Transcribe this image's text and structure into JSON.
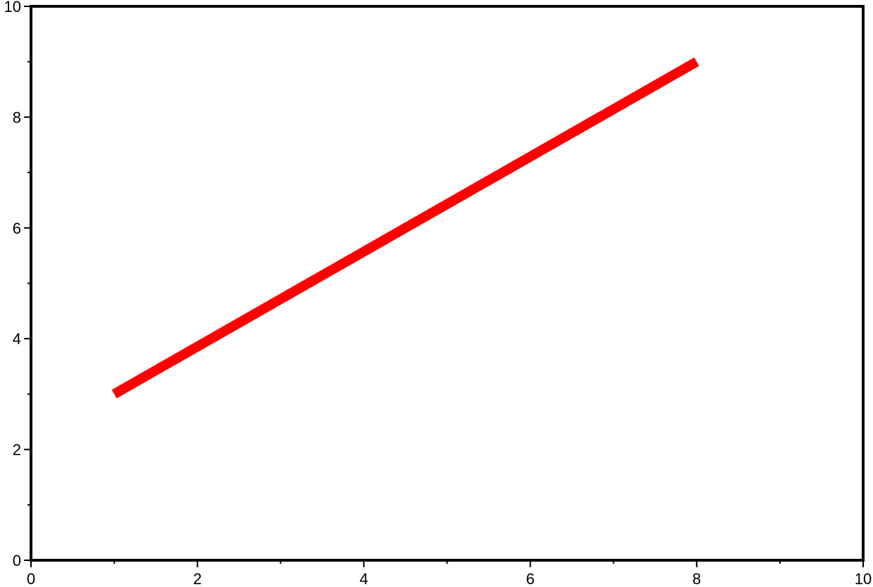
{
  "chart_data": {
    "type": "line",
    "title": "",
    "xlabel": "",
    "ylabel": "",
    "xlim": [
      0,
      10
    ],
    "ylim": [
      0,
      10
    ],
    "x_ticks": [
      "0",
      "2",
      "4",
      "6",
      "8",
      "10"
    ],
    "y_ticks": [
      "0",
      "2",
      "4",
      "6",
      "8",
      "10"
    ],
    "x_minor_step": 1,
    "y_minor_step": 1,
    "grid": false,
    "series": [
      {
        "x": [
          1,
          8
        ],
        "y": [
          3,
          9
        ],
        "color": "#ff0000"
      }
    ]
  }
}
